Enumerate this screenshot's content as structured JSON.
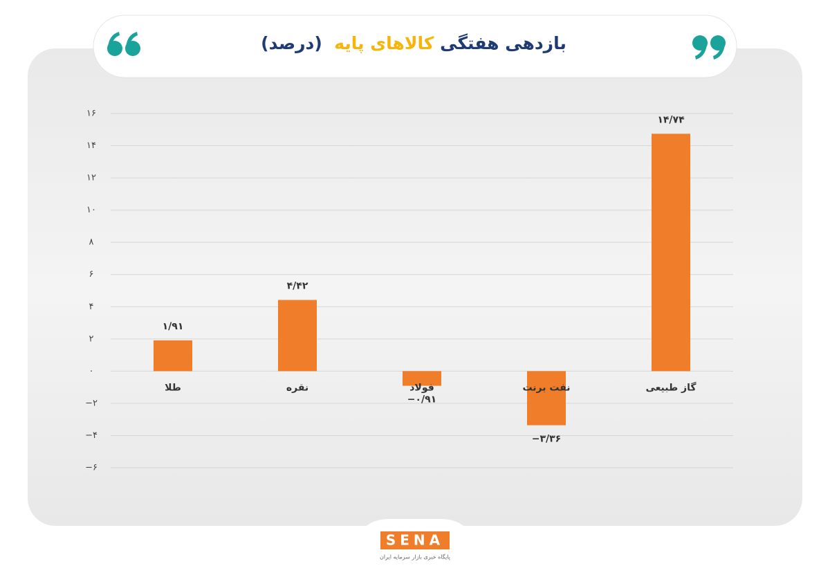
{
  "chart_data": {
    "type": "bar",
    "title": [
      "بازدهی هفتگی",
      "کالاهای پایه",
      "(درصد)"
    ],
    "title_colors": [
      "#1f3b73",
      "#f5b50a",
      "#1f3b73"
    ],
    "categories": [
      "طلا",
      "نقره",
      "فولاد",
      "نفت برنت",
      "گاز طبیعی"
    ],
    "values": [
      1.91,
      4.42,
      -0.91,
      -3.36,
      14.74
    ],
    "value_labels": [
      "۱/۹۱",
      "۴/۴۲",
      "−۰/۹۱",
      "−۳/۳۶",
      "۱۴/۷۴"
    ],
    "color": "#ef7d2a",
    "ylim": [
      -6,
      16
    ],
    "yticks": [
      {
        "value": -6,
        "label": "−۶"
      },
      {
        "value": -4,
        "label": "−۴"
      },
      {
        "value": -2,
        "label": "−۲"
      },
      {
        "value": 0,
        "label": "۰"
      },
      {
        "value": 2,
        "label": "۲"
      },
      {
        "value": 4,
        "label": "۴"
      },
      {
        "value": 6,
        "label": "۶"
      },
      {
        "value": 8,
        "label": "۸"
      },
      {
        "value": 10,
        "label": "۱۰"
      },
      {
        "value": 12,
        "label": "۱۲"
      },
      {
        "value": 14,
        "label": "۱۴"
      },
      {
        "value": 16,
        "label": "۱۶"
      }
    ],
    "grid": true,
    "source": {
      "logo": "SENA",
      "tagline": "پایگاه خبری بازار سرمایه ایران"
    }
  }
}
